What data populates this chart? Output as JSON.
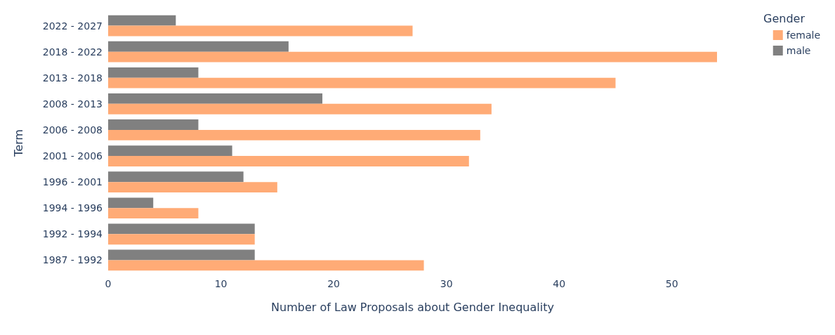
{
  "chart_data": {
    "type": "bar",
    "orientation": "horizontal",
    "xlabel": "Number of Law Proposals about Gender Inequality",
    "ylabel": "Term",
    "legend_title": "Gender",
    "legend": "top right",
    "categories": [
      "2022 - 2027",
      "2018 - 2022",
      "2013 - 2018",
      "2008 - 2013",
      "2006 - 2008",
      "2001 - 2006",
      "1996 - 2001",
      "1994 - 1996",
      "1992 - 1994",
      "1987 - 1992"
    ],
    "series": [
      {
        "name": "female",
        "color": "#ffab76",
        "values": [
          27,
          54,
          45,
          34,
          33,
          32,
          15,
          8,
          13,
          28
        ]
      },
      {
        "name": "male",
        "color": "#808080",
        "values": [
          6,
          16,
          8,
          19,
          8,
          11,
          12,
          4,
          13,
          13
        ]
      }
    ],
    "xlim": [
      0,
      54
    ],
    "xticks": [
      0,
      10,
      20,
      30,
      40,
      50
    ],
    "grid": false
  }
}
